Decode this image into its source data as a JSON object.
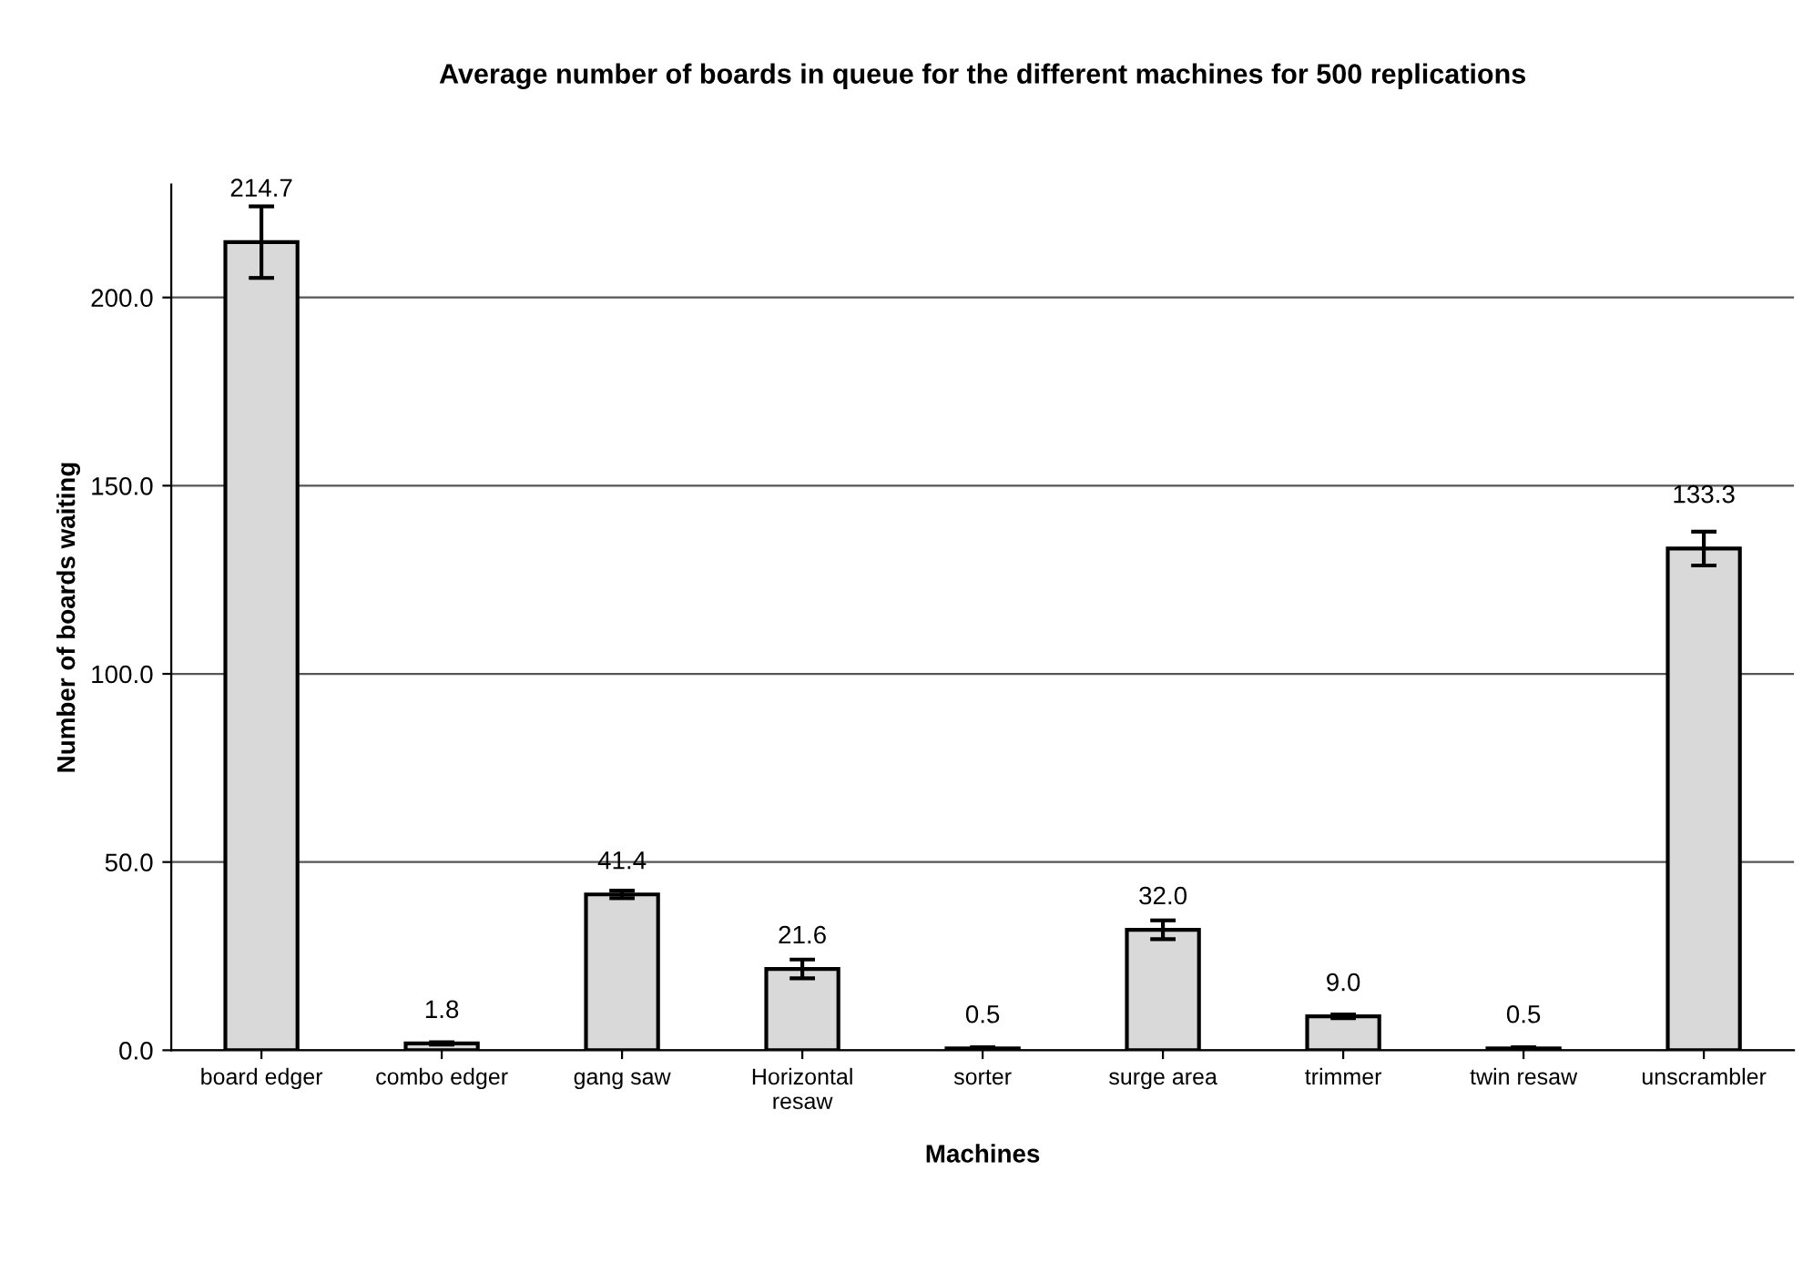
{
  "chart_data": {
    "type": "bar",
    "title": "Average number of boards in queue for the different machines for 500 replications",
    "xlabel": "Machines",
    "ylabel": "Number of boards waiting",
    "categories": [
      "board edger",
      "combo edger",
      "gang saw",
      "Horizontal\nresaw",
      "sorter",
      "surge area",
      "trimmer",
      "twin resaw",
      "unscrambler"
    ],
    "values": [
      214.7,
      1.8,
      41.4,
      21.6,
      0.5,
      32.0,
      9.0,
      0.5,
      133.3
    ],
    "errors": [
      9.5,
      0.3,
      1,
      2.5,
      0.3,
      2.5,
      0.5,
      0.3,
      4.5
    ],
    "value_labels": [
      "214.7",
      "1.8",
      "41.4",
      "21.6",
      "0.5",
      "32.0",
      "9.0",
      "0.5",
      "133.3"
    ],
    "color": "#d9d9d9",
    "ylim": [
      0,
      230
    ],
    "yticks": [
      {
        "value": 0,
        "label": "0.0"
      },
      {
        "value": 50,
        "label": "50.0"
      },
      {
        "value": 100,
        "label": "100.0"
      },
      {
        "value": 150,
        "label": "150.0"
      },
      {
        "value": 200,
        "label": "200.0"
      }
    ],
    "grid": "y",
    "legend": false
  }
}
